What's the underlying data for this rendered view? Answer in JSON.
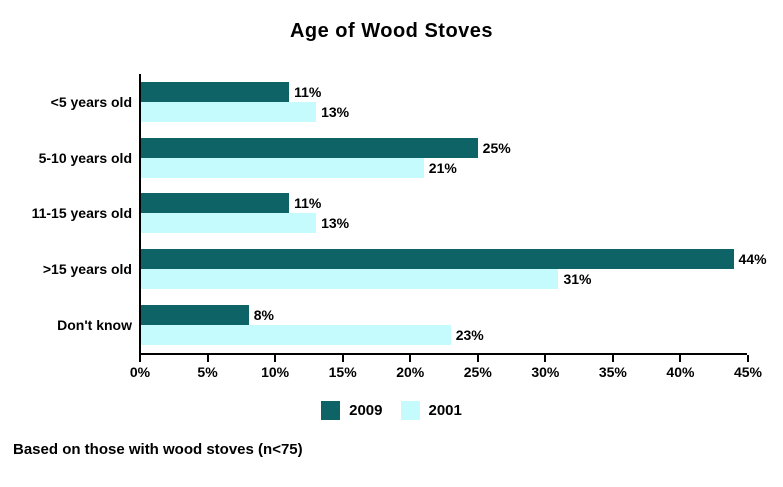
{
  "title": "Age of Wood Stoves",
  "footnote": "Based on those with wood stoves (n<75)",
  "colors": {
    "series_2009": "#0d6366",
    "series_2001": "#c5fbfd",
    "axis": "#000000",
    "text": "#000000",
    "background": "#ffffff"
  },
  "chart_data": {
    "type": "bar",
    "orientation": "horizontal",
    "title": "Age of Wood Stoves",
    "categories": [
      "<5 years old",
      "5-10 years old",
      "11-15 years old",
      ">15 years old",
      "Don't know"
    ],
    "series": [
      {
        "name": "2009",
        "color": "#0d6366",
        "values": [
          11,
          25,
          11,
          44,
          8
        ]
      },
      {
        "name": "2001",
        "color": "#c5fbfd",
        "values": [
          13,
          21,
          13,
          31,
          23
        ]
      }
    ],
    "value_suffix": "%",
    "xlim": [
      0,
      45
    ],
    "x_ticks": [
      "0%",
      "5%",
      "10%",
      "15%",
      "20%",
      "25%",
      "30%",
      "35%",
      "40%",
      "45%"
    ],
    "x_tick_values": [
      0,
      5,
      10,
      15,
      20,
      25,
      30,
      35,
      40,
      45
    ],
    "grid": false,
    "legend_position": "bottom",
    "data_labels": true
  }
}
